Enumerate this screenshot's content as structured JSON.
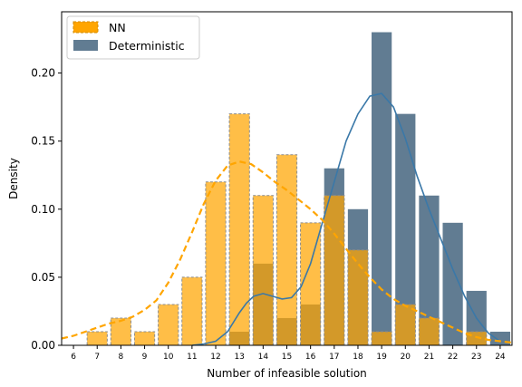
{
  "chart_data": {
    "type": "bar",
    "xlabel": "Number of infeasible solution",
    "ylabel": "Density",
    "categories": [
      "6",
      "7",
      "8",
      "9",
      "10",
      "11",
      "12",
      "13",
      "14",
      "15",
      "16",
      "17",
      "18",
      "19",
      "20",
      "21",
      "22",
      "23",
      "24"
    ],
    "x": [
      6,
      7,
      8,
      9,
      10,
      11,
      12,
      13,
      14,
      15,
      16,
      17,
      18,
      19,
      20,
      21,
      22,
      23,
      24
    ],
    "xlim": [
      5.5,
      24.5
    ],
    "ylim": [
      0,
      0.245
    ],
    "yticks": [
      0.0,
      0.05,
      0.1,
      0.15,
      0.2
    ],
    "ytick_labels": [
      "0.00",
      "0.05",
      "0.10",
      "0.15",
      "0.20"
    ],
    "grid": false,
    "legend_position": "top-left",
    "series": [
      {
        "name": "NN",
        "style": "dashed-bars",
        "color": "#FFA500",
        "values": [
          0,
          0.01,
          0.02,
          0.01,
          0.03,
          0.05,
          0.12,
          0.17,
          0.11,
          0.14,
          0.09,
          0.11,
          0.07,
          0.01,
          0.03,
          0.02,
          0,
          0.01,
          0
        ],
        "kde": {
          "x": [
            5.5,
            6,
            6.5,
            7,
            7.5,
            8,
            8.5,
            9,
            9.5,
            10,
            10.5,
            11,
            11.5,
            12,
            12.5,
            13,
            13.5,
            14,
            14.5,
            15,
            15.5,
            16,
            16.5,
            17,
            17.5,
            18,
            18.5,
            19,
            19.5,
            20,
            20.5,
            21,
            21.5,
            22,
            22.5,
            23,
            23.5,
            24,
            24.5
          ],
          "y": [
            0.005,
            0.007,
            0.01,
            0.013,
            0.016,
            0.018,
            0.021,
            0.026,
            0.033,
            0.046,
            0.063,
            0.083,
            0.104,
            0.121,
            0.132,
            0.135,
            0.133,
            0.127,
            0.12,
            0.114,
            0.107,
            0.1,
            0.092,
            0.082,
            0.071,
            0.06,
            0.05,
            0.041,
            0.034,
            0.029,
            0.025,
            0.021,
            0.017,
            0.013,
            0.009,
            0.006,
            0.004,
            0.003,
            0.002
          ]
        }
      },
      {
        "name": "Deterministic",
        "style": "solid-bars",
        "color": "#4A6882",
        "values": [
          0,
          0,
          0,
          0,
          0,
          0,
          0,
          0.01,
          0.06,
          0.02,
          0.03,
          0.13,
          0.1,
          0.23,
          0.17,
          0.11,
          0.09,
          0.04,
          0.01
        ],
        "kde": {
          "x": [
            11,
            11.5,
            12,
            12.5,
            13,
            13.3,
            13.6,
            14,
            14.4,
            14.8,
            15.2,
            15.6,
            16,
            16.5,
            17,
            17.5,
            18,
            18.5,
            19,
            19.5,
            20,
            20.5,
            21,
            21.5,
            22,
            22.5,
            23,
            23.5,
            24
          ],
          "y": [
            0,
            0.001,
            0.003,
            0.01,
            0.024,
            0.031,
            0.036,
            0.038,
            0.036,
            0.034,
            0.035,
            0.043,
            0.06,
            0.09,
            0.12,
            0.15,
            0.17,
            0.183,
            0.185,
            0.175,
            0.152,
            0.124,
            0.1,
            0.078,
            0.056,
            0.036,
            0.02,
            0.009,
            0.003
          ]
        }
      }
    ]
  }
}
